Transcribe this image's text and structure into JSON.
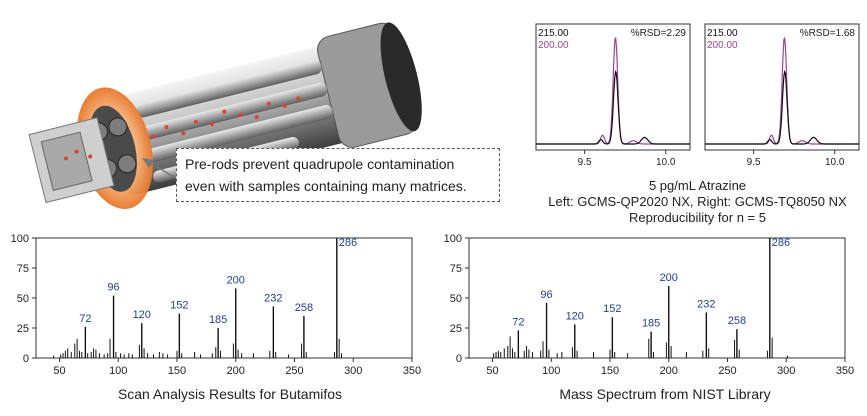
{
  "callout": {
    "line1": "Pre-rods prevent quadrupole contamination",
    "line2": "even with samples containing many matrices."
  },
  "chromatogram_caption": {
    "line1": "5 pg/mL Atrazine",
    "line2": "Left: GCMS-QP2020 NX, Right: GCMS-TQ8050 NX",
    "line3": "Reproducibility for n = 5"
  },
  "spectrum_captions": {
    "left": "Scan Analysis Results for Butamifos",
    "right": "Mass Spectrum from NIST Library"
  },
  "colors": {
    "series_black": "#111111",
    "series_magenta": "#a0429a",
    "peak_label_blue": "#1f3f9a",
    "orange_ring": "#f07a2a"
  },
  "chart_data": [
    {
      "type": "line",
      "panel": "chromatogram-left",
      "series": [
        {
          "name": "215.00",
          "color": "#111111"
        },
        {
          "name": "200.00",
          "color": "#a0429a"
        }
      ],
      "annotation": "%RSD=2.29",
      "x_ticks": [
        "9.5",
        "10.0"
      ],
      "xlim": [
        9.2,
        10.15
      ],
      "peak_rt": 9.69
    },
    {
      "type": "line",
      "panel": "chromatogram-right",
      "series": [
        {
          "name": "215.00",
          "color": "#111111"
        },
        {
          "name": "200.00",
          "color": "#a0429a"
        }
      ],
      "annotation": "%RSD=1.68",
      "x_ticks": [
        "9.5",
        "10.0"
      ],
      "xlim": [
        9.2,
        10.15
      ],
      "peak_rt": 9.69
    },
    {
      "type": "bar",
      "panel": "spectrum-left",
      "xlim": [
        30,
        350
      ],
      "ylim": [
        0,
        100
      ],
      "x_ticks": [
        50,
        100,
        150,
        200,
        250,
        300,
        350
      ],
      "y_ticks": [
        0,
        25,
        50,
        75,
        100
      ],
      "labeled_peaks": [
        {
          "x": 72,
          "y": 26,
          "label": "72"
        },
        {
          "x": 96,
          "y": 52,
          "label": "96"
        },
        {
          "x": 120,
          "y": 29,
          "label": "120"
        },
        {
          "x": 152,
          "y": 37,
          "label": "152"
        },
        {
          "x": 185,
          "y": 25,
          "label": "185"
        },
        {
          "x": 200,
          "y": 58,
          "label": "200"
        },
        {
          "x": 232,
          "y": 43,
          "label": "232"
        },
        {
          "x": 258,
          "y": 35,
          "label": "258"
        },
        {
          "x": 286,
          "y": 100,
          "label": "286"
        }
      ],
      "minor_peaks": [
        {
          "x": 45,
          "y": 2
        },
        {
          "x": 51,
          "y": 3
        },
        {
          "x": 53,
          "y": 4
        },
        {
          "x": 55,
          "y": 6
        },
        {
          "x": 57,
          "y": 8
        },
        {
          "x": 60,
          "y": 5
        },
        {
          "x": 63,
          "y": 12
        },
        {
          "x": 65,
          "y": 16
        },
        {
          "x": 67,
          "y": 6
        },
        {
          "x": 69,
          "y": 5
        },
        {
          "x": 74,
          "y": 4
        },
        {
          "x": 77,
          "y": 5
        },
        {
          "x": 79,
          "y": 8
        },
        {
          "x": 81,
          "y": 7
        },
        {
          "x": 84,
          "y": 4
        },
        {
          "x": 88,
          "y": 3
        },
        {
          "x": 91,
          "y": 4
        },
        {
          "x": 93,
          "y": 16
        },
        {
          "x": 98,
          "y": 5
        },
        {
          "x": 102,
          "y": 4
        },
        {
          "x": 105,
          "y": 3
        },
        {
          "x": 109,
          "y": 4
        },
        {
          "x": 112,
          "y": 3
        },
        {
          "x": 118,
          "y": 11
        },
        {
          "x": 122,
          "y": 8
        },
        {
          "x": 125,
          "y": 4
        },
        {
          "x": 130,
          "y": 3
        },
        {
          "x": 135,
          "y": 5
        },
        {
          "x": 138,
          "y": 4
        },
        {
          "x": 142,
          "y": 3
        },
        {
          "x": 150,
          "y": 6
        },
        {
          "x": 154,
          "y": 4
        },
        {
          "x": 165,
          "y": 5
        },
        {
          "x": 170,
          "y": 3
        },
        {
          "x": 180,
          "y": 4
        },
        {
          "x": 183,
          "y": 9
        },
        {
          "x": 187,
          "y": 6
        },
        {
          "x": 198,
          "y": 12
        },
        {
          "x": 202,
          "y": 7
        },
        {
          "x": 205,
          "y": 4
        },
        {
          "x": 215,
          "y": 4
        },
        {
          "x": 229,
          "y": 6
        },
        {
          "x": 234,
          "y": 5
        },
        {
          "x": 245,
          "y": 3
        },
        {
          "x": 256,
          "y": 12
        },
        {
          "x": 260,
          "y": 5
        },
        {
          "x": 284,
          "y": 5
        },
        {
          "x": 288,
          "y": 16
        },
        {
          "x": 290,
          "y": 4
        }
      ]
    },
    {
      "type": "bar",
      "panel": "spectrum-right",
      "xlim": [
        30,
        350
      ],
      "ylim": [
        0,
        100
      ],
      "x_ticks": [
        50,
        100,
        150,
        200,
        250,
        300,
        350
      ],
      "y_ticks": [
        0,
        25,
        50,
        75,
        100
      ],
      "labeled_peaks": [
        {
          "x": 72,
          "y": 23,
          "label": "72"
        },
        {
          "x": 96,
          "y": 46,
          "label": "96"
        },
        {
          "x": 120,
          "y": 28,
          "label": "120"
        },
        {
          "x": 152,
          "y": 34,
          "label": "152"
        },
        {
          "x": 185,
          "y": 22,
          "label": "185"
        },
        {
          "x": 200,
          "y": 60,
          "label": "200"
        },
        {
          "x": 232,
          "y": 38,
          "label": "232"
        },
        {
          "x": 258,
          "y": 24,
          "label": "258"
        },
        {
          "x": 286,
          "y": 100,
          "label": "286"
        }
      ],
      "minor_peaks": [
        {
          "x": 51,
          "y": 4
        },
        {
          "x": 53,
          "y": 5
        },
        {
          "x": 55,
          "y": 6
        },
        {
          "x": 57,
          "y": 5
        },
        {
          "x": 60,
          "y": 8
        },
        {
          "x": 63,
          "y": 10
        },
        {
          "x": 65,
          "y": 18
        },
        {
          "x": 67,
          "y": 8
        },
        {
          "x": 69,
          "y": 5
        },
        {
          "x": 77,
          "y": 6
        },
        {
          "x": 79,
          "y": 10
        },
        {
          "x": 81,
          "y": 7
        },
        {
          "x": 84,
          "y": 5
        },
        {
          "x": 91,
          "y": 6
        },
        {
          "x": 93,
          "y": 14
        },
        {
          "x": 98,
          "y": 7
        },
        {
          "x": 105,
          "y": 4
        },
        {
          "x": 109,
          "y": 5
        },
        {
          "x": 118,
          "y": 9
        },
        {
          "x": 122,
          "y": 6
        },
        {
          "x": 136,
          "y": 5
        },
        {
          "x": 150,
          "y": 7
        },
        {
          "x": 154,
          "y": 5
        },
        {
          "x": 165,
          "y": 4
        },
        {
          "x": 183,
          "y": 16
        },
        {
          "x": 187,
          "y": 5
        },
        {
          "x": 198,
          "y": 13
        },
        {
          "x": 202,
          "y": 10
        },
        {
          "x": 215,
          "y": 5
        },
        {
          "x": 229,
          "y": 6
        },
        {
          "x": 234,
          "y": 8
        },
        {
          "x": 256,
          "y": 15
        },
        {
          "x": 260,
          "y": 7
        },
        {
          "x": 284,
          "y": 6
        },
        {
          "x": 288,
          "y": 17
        },
        {
          "x": 301,
          "y": 2
        }
      ]
    }
  ]
}
